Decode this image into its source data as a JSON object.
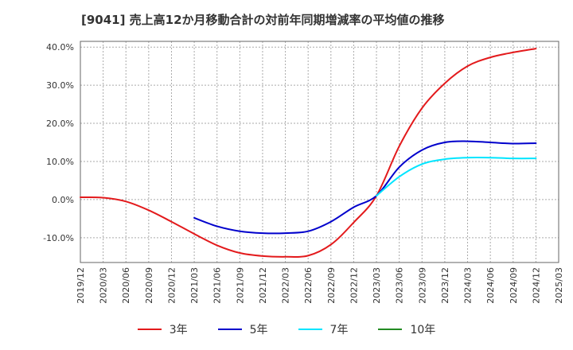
{
  "chart_data": {
    "type": "line",
    "title": "[9041]  売上高12か月移動合計の対前年同期増減率の平均値の推移",
    "xlabel": "",
    "ylabel": "",
    "ylim": [
      -16.5,
      41.5
    ],
    "y_ticks": [
      40,
      30,
      20,
      10,
      0,
      -10
    ],
    "y_tick_labels": [
      "40.0%",
      "30.0%",
      "20.0%",
      "10.0%",
      "0.0%",
      "-10.0%"
    ],
    "x_tick_labels": [
      "2019/12",
      "2020/03",
      "2020/06",
      "2020/09",
      "2020/12",
      "2021/03",
      "2021/06",
      "2021/09",
      "2021/12",
      "2022/03",
      "2022/06",
      "2022/09",
      "2022/12",
      "2023/03",
      "2023/06",
      "2023/09",
      "2023/12",
      "2024/03",
      "2024/06",
      "2024/09",
      "2024/12",
      "2025/03"
    ],
    "grid": true,
    "legend_position": "bottom",
    "series": [
      {
        "name": "3年",
        "color": "#e31a1c",
        "start_index": 0,
        "values": [
          0.6,
          0.5,
          -0.5,
          -2.8,
          -5.8,
          -9.0,
          -12.0,
          -14.0,
          -14.8,
          -15.0,
          -14.7,
          -11.8,
          -6.0,
          1.0,
          14.0,
          24.0,
          30.5,
          35.0,
          37.3,
          38.6,
          39.6
        ]
      },
      {
        "name": "5年",
        "color": "#0000cc",
        "start_index": 5,
        "values": [
          -4.8,
          -7.0,
          -8.3,
          -8.8,
          -8.8,
          -8.3,
          -5.8,
          -2.0,
          1.0,
          8.5,
          13.0,
          15.0,
          15.3,
          15.0,
          14.7,
          14.8
        ]
      },
      {
        "name": "7年",
        "color": "#00e5ff",
        "start_index": 13,
        "values": [
          1.0,
          6.0,
          9.3,
          10.6,
          11.0,
          11.0,
          10.8,
          10.8
        ]
      },
      {
        "name": "10年",
        "color": "#228b22",
        "start_index": 0,
        "values": []
      }
    ]
  }
}
